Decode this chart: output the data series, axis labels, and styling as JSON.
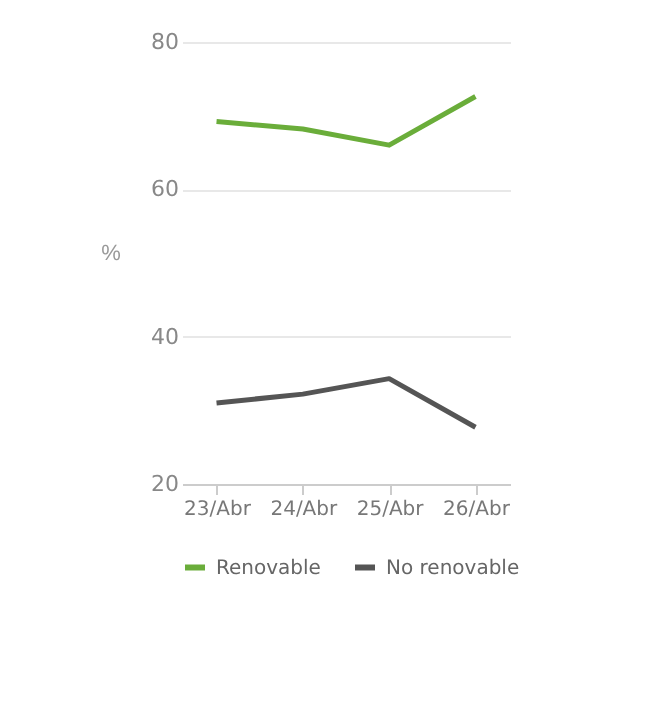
{
  "chart_data": {
    "type": "line",
    "ylabel": "%",
    "categories": [
      "23/Abr",
      "24/Abr",
      "25/Abr",
      "26/Abr"
    ],
    "series": [
      {
        "name": "Renovable",
        "color": "#6aad3a",
        "values": [
          69.2,
          68.2,
          66.0,
          72.6
        ]
      },
      {
        "name": "No renovable",
        "color": "#555555",
        "values": [
          31.0,
          32.2,
          34.3,
          27.7
        ]
      }
    ],
    "ylim": [
      20,
      80
    ],
    "yticks": [
      20,
      40,
      60,
      80
    ],
    "grid": "y",
    "legend": "bottom",
    "marker": "none",
    "line_style": "solid"
  }
}
